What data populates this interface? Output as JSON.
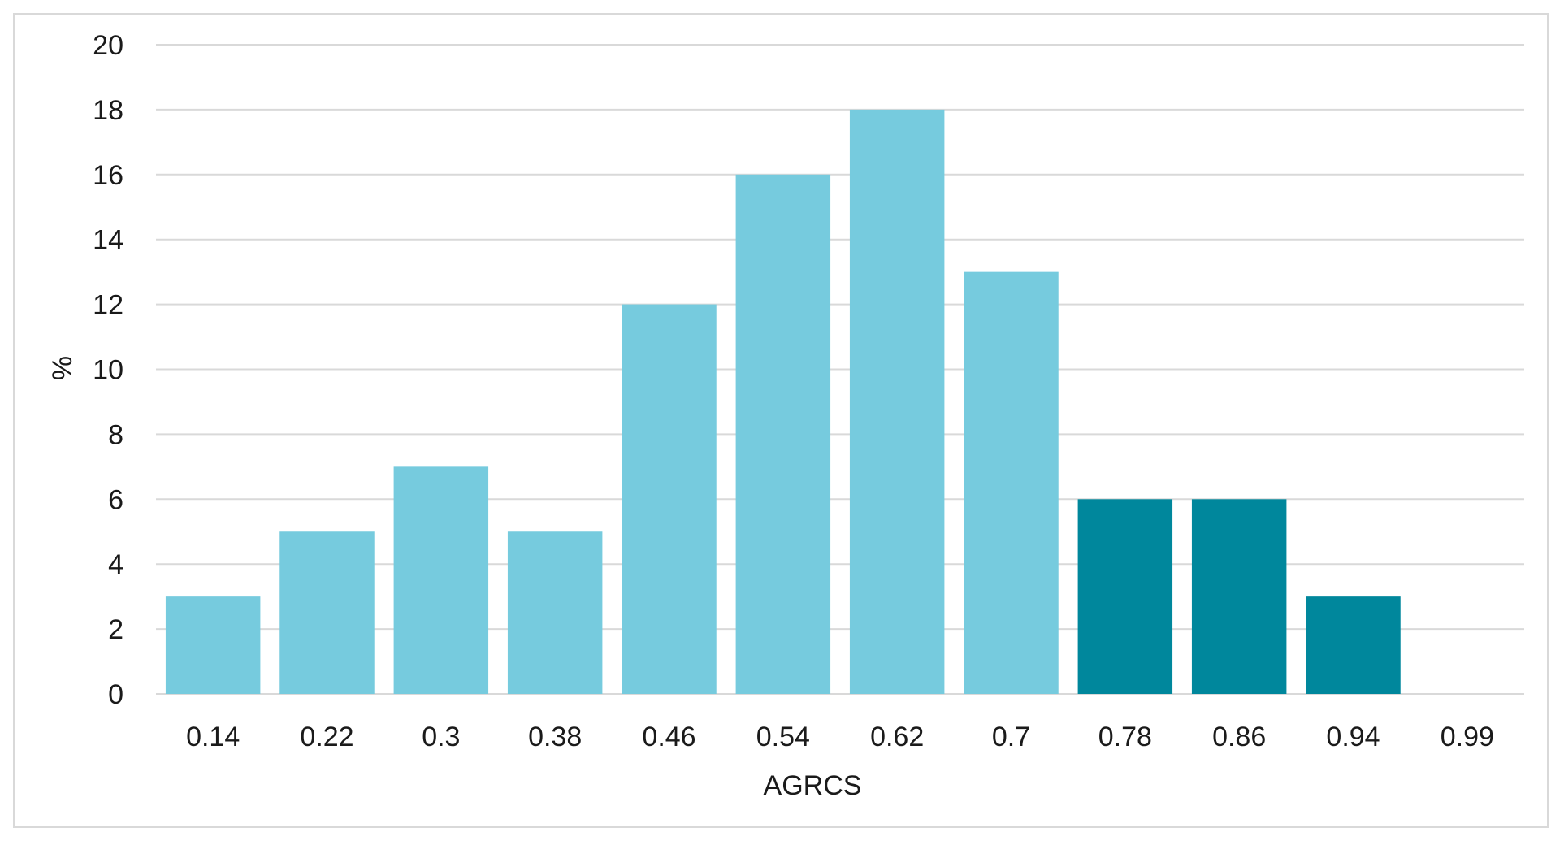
{
  "chart_data": {
    "type": "bar",
    "title": "",
    "xlabel": "AGRCS",
    "ylabel": "%",
    "categories": [
      "0.14",
      "0.22",
      "0.3",
      "0.38",
      "0.46",
      "0.54",
      "0.62",
      "0.7",
      "0.78",
      "0.86",
      "0.94",
      "0.99"
    ],
    "values": [
      3,
      5,
      7,
      5,
      12,
      16,
      18,
      13,
      6,
      6,
      3,
      0
    ],
    "bar_colors": [
      "#76cbde",
      "#76cbde",
      "#76cbde",
      "#76cbde",
      "#76cbde",
      "#76cbde",
      "#76cbde",
      "#76cbde",
      "#00879c",
      "#00879c",
      "#00879c",
      "#00879c"
    ],
    "ylim": [
      0,
      20
    ],
    "yticks": [
      "0",
      "2",
      "4",
      "6",
      "8",
      "10",
      "12",
      "14",
      "16",
      "18",
      "20"
    ],
    "grid": true,
    "legend": "none"
  },
  "colors": {
    "light_bar": "#76cbde",
    "dark_bar": "#00879c",
    "grid": "#d9d9d9",
    "text": "#1a1a1a"
  }
}
